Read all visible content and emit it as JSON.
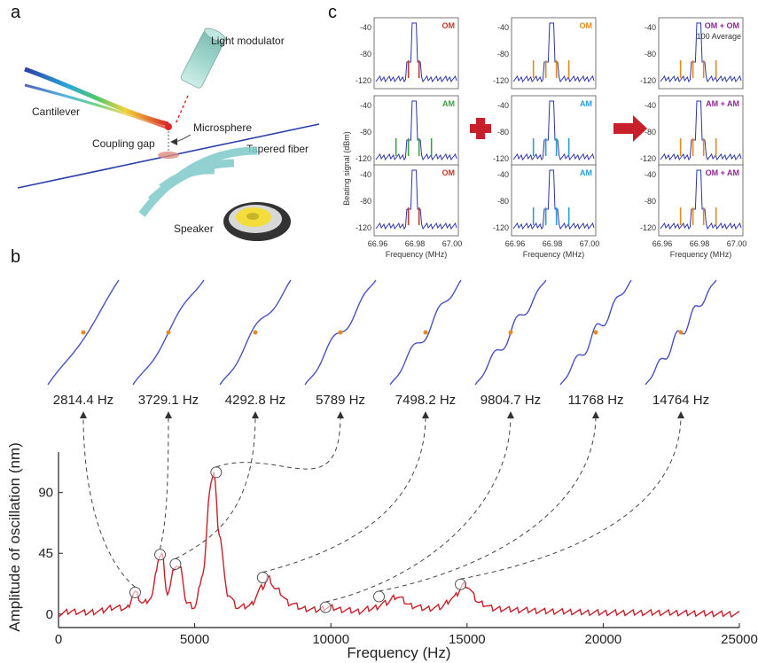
{
  "panels": {
    "a": "a",
    "b": "b",
    "c": "c"
  },
  "setup": {
    "light_modulator": "Light modulator",
    "cantilever": "Cantilever",
    "microsphere": "Microsphere",
    "coupling_gap": "Coupling gap",
    "tapered_fiber": "Tapered fiber",
    "speaker": "Speaker"
  },
  "colors": {
    "om": "#c0392b",
    "am": "#3ea043",
    "plus_am": "#2a9fd6",
    "avg": "#e58a1f",
    "combo": "#8e2a8e",
    "trace": "#2b35a8",
    "main_curve": "#c8202a",
    "arrow": "#c8202a"
  },
  "spectra": {
    "ylabel": "Beating signal (dBm)",
    "xlabel": "Frequency (MHz)",
    "yticks": [
      "-40",
      "-80",
      "-120"
    ],
    "xticks": [
      "66.96",
      "66.98",
      "67.00"
    ],
    "col1": [
      "OM",
      "AM",
      "OM"
    ],
    "col2": [
      "OM",
      "AM",
      "AM"
    ],
    "col3": [
      "OM + OM",
      "AM + AM",
      "OM + AM"
    ],
    "avg_note": "100 Average"
  },
  "mode_labels": [
    "2814.4 Hz",
    "3729.1 Hz",
    "4292.8 Hz",
    "5789 Hz",
    "7498.2 Hz",
    "9804.7 Hz",
    "11768 Hz",
    "14764 Hz"
  ],
  "chart_data": {
    "type": "line",
    "xlabel": "Frequency (Hz)",
    "ylabel": "Amplitude of oscillation (nm)",
    "xlim": [
      0,
      25000
    ],
    "ylim": [
      -10,
      120
    ],
    "xticks": [
      0,
      5000,
      10000,
      15000,
      20000,
      25000
    ],
    "yticks": [
      0,
      45,
      90
    ],
    "x": [
      0,
      500,
      1000,
      1500,
      2000,
      2500,
      2800,
      3100,
      3400,
      3700,
      3800,
      4000,
      4300,
      4500,
      4700,
      5000,
      5300,
      5600,
      5700,
      5900,
      6200,
      6600,
      7000,
      7500,
      7700,
      8000,
      8500,
      9000,
      9500,
      9900,
      10500,
      11000,
      11500,
      12000,
      12400,
      13000,
      13500,
      14000,
      14500,
      14900,
      15500,
      16000,
      17000,
      18000,
      20000,
      22000,
      25000
    ],
    "y": [
      0,
      2,
      1,
      2,
      5,
      4,
      16,
      8,
      12,
      42,
      44,
      15,
      36,
      33,
      8,
      5,
      30,
      98,
      105,
      60,
      15,
      5,
      6,
      20,
      27,
      18,
      8,
      4,
      3,
      5,
      3,
      2,
      4,
      8,
      13,
      6,
      4,
      5,
      12,
      22,
      8,
      4,
      3,
      2,
      1,
      1,
      0
    ],
    "markers": [
      {
        "x": 2814.4,
        "y": 16
      },
      {
        "x": 3729.1,
        "y": 44
      },
      {
        "x": 4292.8,
        "y": 37
      },
      {
        "x": 5789,
        "y": 105
      },
      {
        "x": 7498.2,
        "y": 27
      },
      {
        "x": 9804.7,
        "y": 5
      },
      {
        "x": 11768,
        "y": 13
      },
      {
        "x": 14764,
        "y": 22
      }
    ]
  }
}
